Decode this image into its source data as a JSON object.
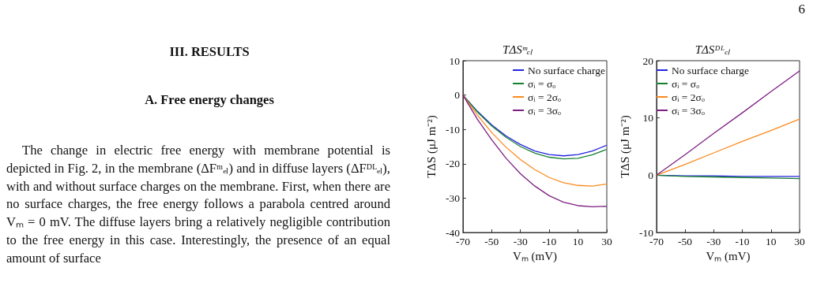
{
  "chart_data": [
    {
      "type": "line",
      "title": "TΔSᵐₑₗ",
      "xlabel": "Vₘ (mV)",
      "ylabel": "TΔS (μJ m⁻²)",
      "annotations": [
        "6",
        "III.  RESULTS",
        "A.  Free energy changes",
        "The change in electric free energy with membrane potential is depicted in Fig. 2, in the membrane (ΔFᵐₑₗ) and in diffuse layers (ΔFᴰᴸₑₗ), with and without surface charges on the membrane. First, when there are no surface charges, the free energy follows a parabola centred around Vₘ = 0 mV. The diffuse layers bring a relatively negligible contribution to the free energy in this case. Interestingly, the presence of an equal amount of surface"
      ],
      "x": [
        -70,
        -60,
        -50,
        -40,
        -30,
        -20,
        -10,
        0,
        10,
        20,
        30
      ],
      "series": [
        {
          "name": "No surface charge",
          "color": "#2323e0",
          "values": [
            0,
            -4.7,
            -8.7,
            -11.9,
            -14.4,
            -16.3,
            -17.3,
            -17.7,
            -17.3,
            -16.3,
            -14.6
          ]
        },
        {
          "name": "σᵢ = σₒ",
          "color": "#178030",
          "values": [
            0,
            -4.9,
            -9.0,
            -12.3,
            -15.0,
            -16.9,
            -18.1,
            -18.6,
            -18.4,
            -17.4,
            -15.8
          ]
        },
        {
          "name": "σᵢ = 2σₒ",
          "color": "#fb8a1c",
          "values": [
            0,
            -5.8,
            -10.9,
            -15.2,
            -18.8,
            -21.7,
            -24.0,
            -25.5,
            -26.3,
            -26.5,
            -25.9
          ]
        },
        {
          "name": "σᵢ = 3σₒ",
          "color": "#7d1e82",
          "values": [
            0,
            -7.0,
            -13.0,
            -18.4,
            -22.9,
            -26.5,
            -29.3,
            -31.2,
            -32.2,
            -32.5,
            -32.4
          ]
        }
      ],
      "xlim": [
        -70,
        30
      ],
      "xticks": [
        -70,
        -50,
        -30,
        -10,
        10,
        30
      ],
      "ylim": [
        -40,
        10
      ],
      "yticks": [
        -40,
        -30,
        -20,
        -10,
        0,
        10
      ],
      "grid": false,
      "legend": "top right",
      "marker": "none",
      "line_style": "solid"
    },
    {
      "type": "line",
      "title": "TΔSᴰᴸₑₗ",
      "xlabel": "Vₘ (mV)",
      "ylabel": "TΔS (μJ m⁻²)",
      "x": [
        -70,
        -50,
        -30,
        -10,
        10,
        30
      ],
      "series": [
        {
          "name": "No surface charge",
          "color": "#2323e0",
          "values": [
            0,
            -0.1,
            -0.1,
            -0.2,
            -0.2,
            -0.2
          ]
        },
        {
          "name": "σᵢ = σₒ",
          "color": "#178030",
          "values": [
            0,
            -0.2,
            -0.3,
            -0.4,
            -0.5,
            -0.6
          ]
        },
        {
          "name": "σᵢ = 2σₒ",
          "color": "#fb8a1c",
          "values": [
            0,
            1.9,
            3.9,
            5.9,
            7.8,
            9.8
          ]
        },
        {
          "name": "σᵢ = 3σₒ",
          "color": "#7d1e82",
          "values": [
            0,
            3.6,
            7.3,
            10.9,
            14.6,
            18.2
          ]
        }
      ],
      "xlim": [
        -70,
        30
      ],
      "xticks": [
        -70,
        -50,
        -30,
        -10,
        10,
        30
      ],
      "ylim": [
        -10,
        20
      ],
      "yticks": [
        -10,
        0,
        10,
        20
      ],
      "grid": false,
      "legend": "top left",
      "marker": "none",
      "line_style": "solid"
    }
  ]
}
